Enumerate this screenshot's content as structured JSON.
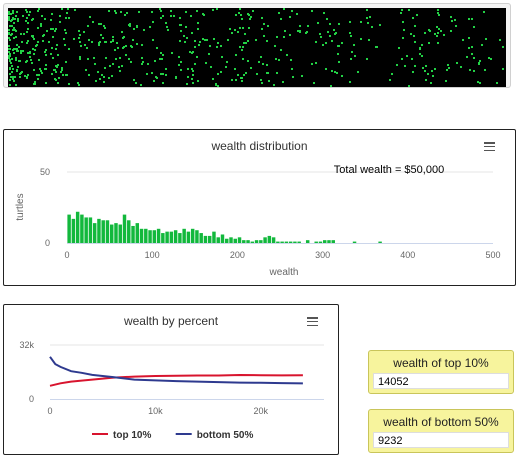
{
  "world": {
    "turtle_color": "#22d045",
    "background": "#000000"
  },
  "histogram": {
    "title": "wealth distribution",
    "annotation": "Total wealth = $50,000",
    "chart_data": {
      "type": "bar",
      "title": "wealth distribution",
      "xlabel": "wealth",
      "ylabel": "turtles",
      "xlim": [
        0,
        500
      ],
      "ylim": [
        0,
        50
      ],
      "bin_width": 5,
      "x_ticks": [
        "0",
        "100",
        "200",
        "300",
        "400",
        "500"
      ],
      "y_ticks": [
        "0",
        "50"
      ],
      "bar_color": "#12b83c",
      "bins_start": [
        0,
        5,
        10,
        15,
        20,
        25,
        30,
        35,
        40,
        45,
        50,
        55,
        60,
        65,
        70,
        75,
        80,
        85,
        90,
        95,
        100,
        105,
        110,
        115,
        120,
        125,
        130,
        135,
        140,
        145,
        150,
        155,
        160,
        165,
        170,
        175,
        180,
        185,
        190,
        195,
        200,
        205,
        210,
        215,
        220,
        225,
        230,
        235,
        240,
        245,
        250,
        255,
        260,
        265,
        270,
        275,
        280,
        285,
        290,
        295,
        300,
        305,
        310,
        315,
        320,
        325,
        330,
        335,
        340,
        345,
        350,
        355,
        360,
        365
      ],
      "values": [
        20,
        17,
        22,
        20,
        18,
        18,
        14,
        17,
        16,
        16,
        13,
        14,
        13,
        20,
        16,
        12,
        14,
        10,
        10,
        9,
        9,
        10,
        7,
        8,
        8,
        9,
        7,
        10,
        8,
        10,
        9,
        7,
        5,
        5,
        8,
        4,
        6,
        3,
        4,
        3,
        4,
        2,
        2,
        1,
        2,
        2,
        4,
        5,
        4,
        1,
        1,
        1,
        1,
        1,
        1,
        0,
        2,
        0,
        1,
        1,
        2,
        2,
        2,
        0,
        0,
        0,
        0,
        1,
        0,
        0,
        0,
        0,
        0,
        1
      ]
    }
  },
  "percent": {
    "title": "wealth by percent",
    "chart_data": {
      "type": "line",
      "title": "wealth by percent",
      "xlim": [
        0,
        26000
      ],
      "ylim": [
        0,
        32000
      ],
      "x_ticks": [
        "0",
        "10k",
        "20k"
      ],
      "y_ticks": [
        "0",
        "32k"
      ],
      "legend": "bottom",
      "series": [
        {
          "name": "top 10%",
          "color": "#d8142e",
          "x": [
            0,
            1000,
            2000,
            4000,
            6000,
            8000,
            10000,
            12000,
            14000,
            16000,
            18000,
            20000,
            22000,
            24000
          ],
          "y": [
            7800,
            9300,
            10300,
            11500,
            12700,
            13300,
            13600,
            13800,
            13900,
            13900,
            14200,
            14100,
            14000,
            14052
          ]
        },
        {
          "name": "bottom 50%",
          "color": "#2e3a8f",
          "x": [
            0,
            500,
            1000,
            2000,
            3000,
            4000,
            6000,
            8000,
            10000,
            12000,
            14000,
            16000,
            18000,
            20000,
            22000,
            24000
          ],
          "y": [
            25000,
            20700,
            19000,
            16500,
            15500,
            14300,
            13000,
            11500,
            11000,
            10600,
            10300,
            10000,
            9700,
            9600,
            9400,
            9232
          ]
        }
      ]
    }
  },
  "monitors": {
    "top10": {
      "label": "wealth of top 10%",
      "value": "14052"
    },
    "bottom50": {
      "label": "wealth of bottom 50%",
      "value": "9232"
    }
  }
}
